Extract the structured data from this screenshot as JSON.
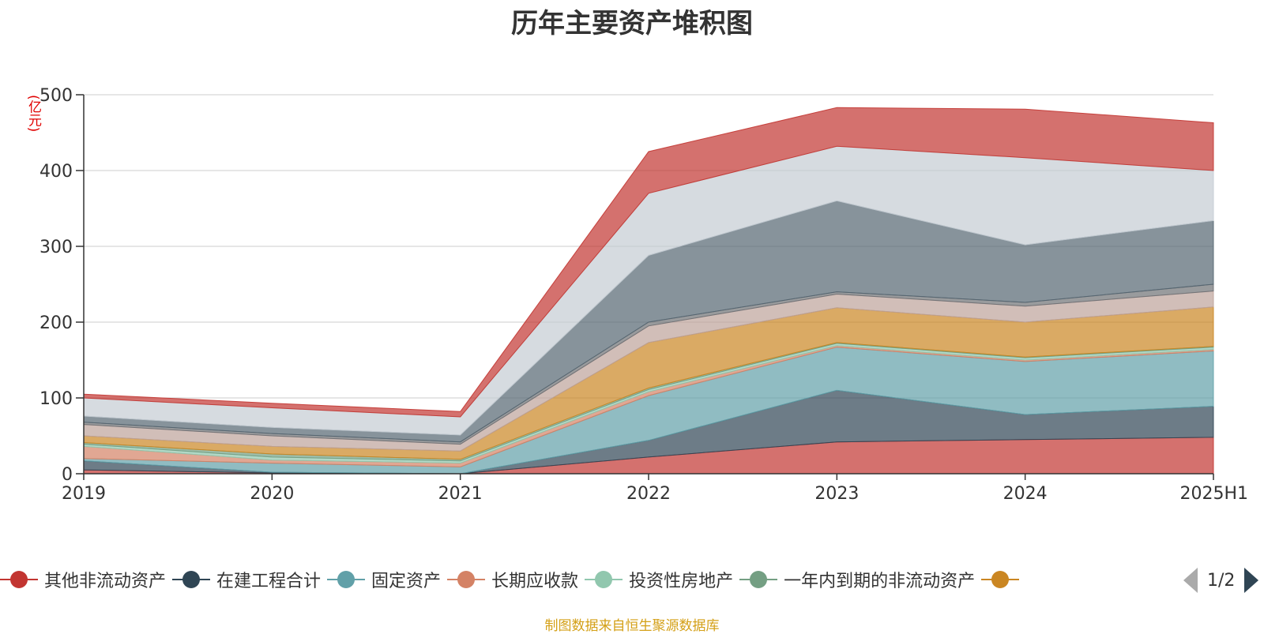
{
  "title": "历年主要资产堆积图",
  "unit_label": "(亿元)",
  "source_note": "制图数据来自恒生聚源数据库",
  "legend": {
    "page": "1/2",
    "visible_items": [
      {
        "label": "其他非流动资产",
        "color": "#c23531"
      },
      {
        "label": "在建工程合计",
        "color": "#2f4554"
      },
      {
        "label": "固定资产",
        "color": "#61a0a8"
      },
      {
        "label": "长期应收款",
        "color": "#d48265"
      },
      {
        "label": "投资性房地产",
        "color": "#91c7ae"
      },
      {
        "label": "一年内到期的非流动资产",
        "color": "#749f83"
      },
      {
        "label": "",
        "color": "#ca8622"
      }
    ]
  },
  "chart_data": {
    "type": "area",
    "stacked": true,
    "title": "历年主要资产堆积图",
    "ylabel": "(亿元)",
    "ylim": [
      0,
      500
    ],
    "yticks": [
      0,
      100,
      200,
      300,
      400,
      500
    ],
    "grid": true,
    "legend_position": "bottom",
    "categories": [
      "2019",
      "2020",
      "2021",
      "2022",
      "2023",
      "2024",
      "2025H1"
    ],
    "series": [
      {
        "name": "其他非流动资产",
        "color": "#c23531",
        "values": [
          5,
          1,
          0,
          22,
          42,
          45,
          48
        ]
      },
      {
        "name": "在建工程合计",
        "color": "#2f4554",
        "values": [
          12,
          1,
          0,
          22,
          68,
          33,
          41
        ]
      },
      {
        "name": "固定资产",
        "color": "#61a0a8",
        "values": [
          3,
          12,
          9,
          59,
          57,
          70,
          73
        ]
      },
      {
        "name": "长期应收款",
        "color": "#d48265",
        "values": [
          16,
          4,
          5,
          5,
          2,
          2,
          2
        ]
      },
      {
        "name": "投资性房地产",
        "color": "#91c7ae",
        "values": [
          3,
          4,
          3,
          3,
          3,
          3,
          3
        ]
      },
      {
        "name": "一年内到期的非流动资产",
        "color": "#749f83",
        "values": [
          2,
          4,
          2,
          2,
          1,
          1,
          1
        ]
      },
      {
        "color": "#ca8622",
        "values": [
          9,
          10,
          11,
          60,
          46,
          46,
          52
        ]
      },
      {
        "color": "#bda29a",
        "values": [
          15,
          14,
          9,
          22,
          18,
          21,
          21
        ]
      },
      {
        "color": "#6e7074",
        "values": [
          3,
          3,
          3,
          5,
          3,
          5,
          9
        ]
      },
      {
        "color": "#546570",
        "values": [
          8,
          8,
          9,
          88,
          120,
          76,
          84
        ]
      },
      {
        "color": "#c4ccd3",
        "values": [
          24,
          26,
          24,
          82,
          72,
          115,
          66
        ]
      },
      {
        "color": "#c23531",
        "values": [
          5,
          6,
          7,
          55,
          51,
          64,
          63
        ]
      }
    ]
  }
}
